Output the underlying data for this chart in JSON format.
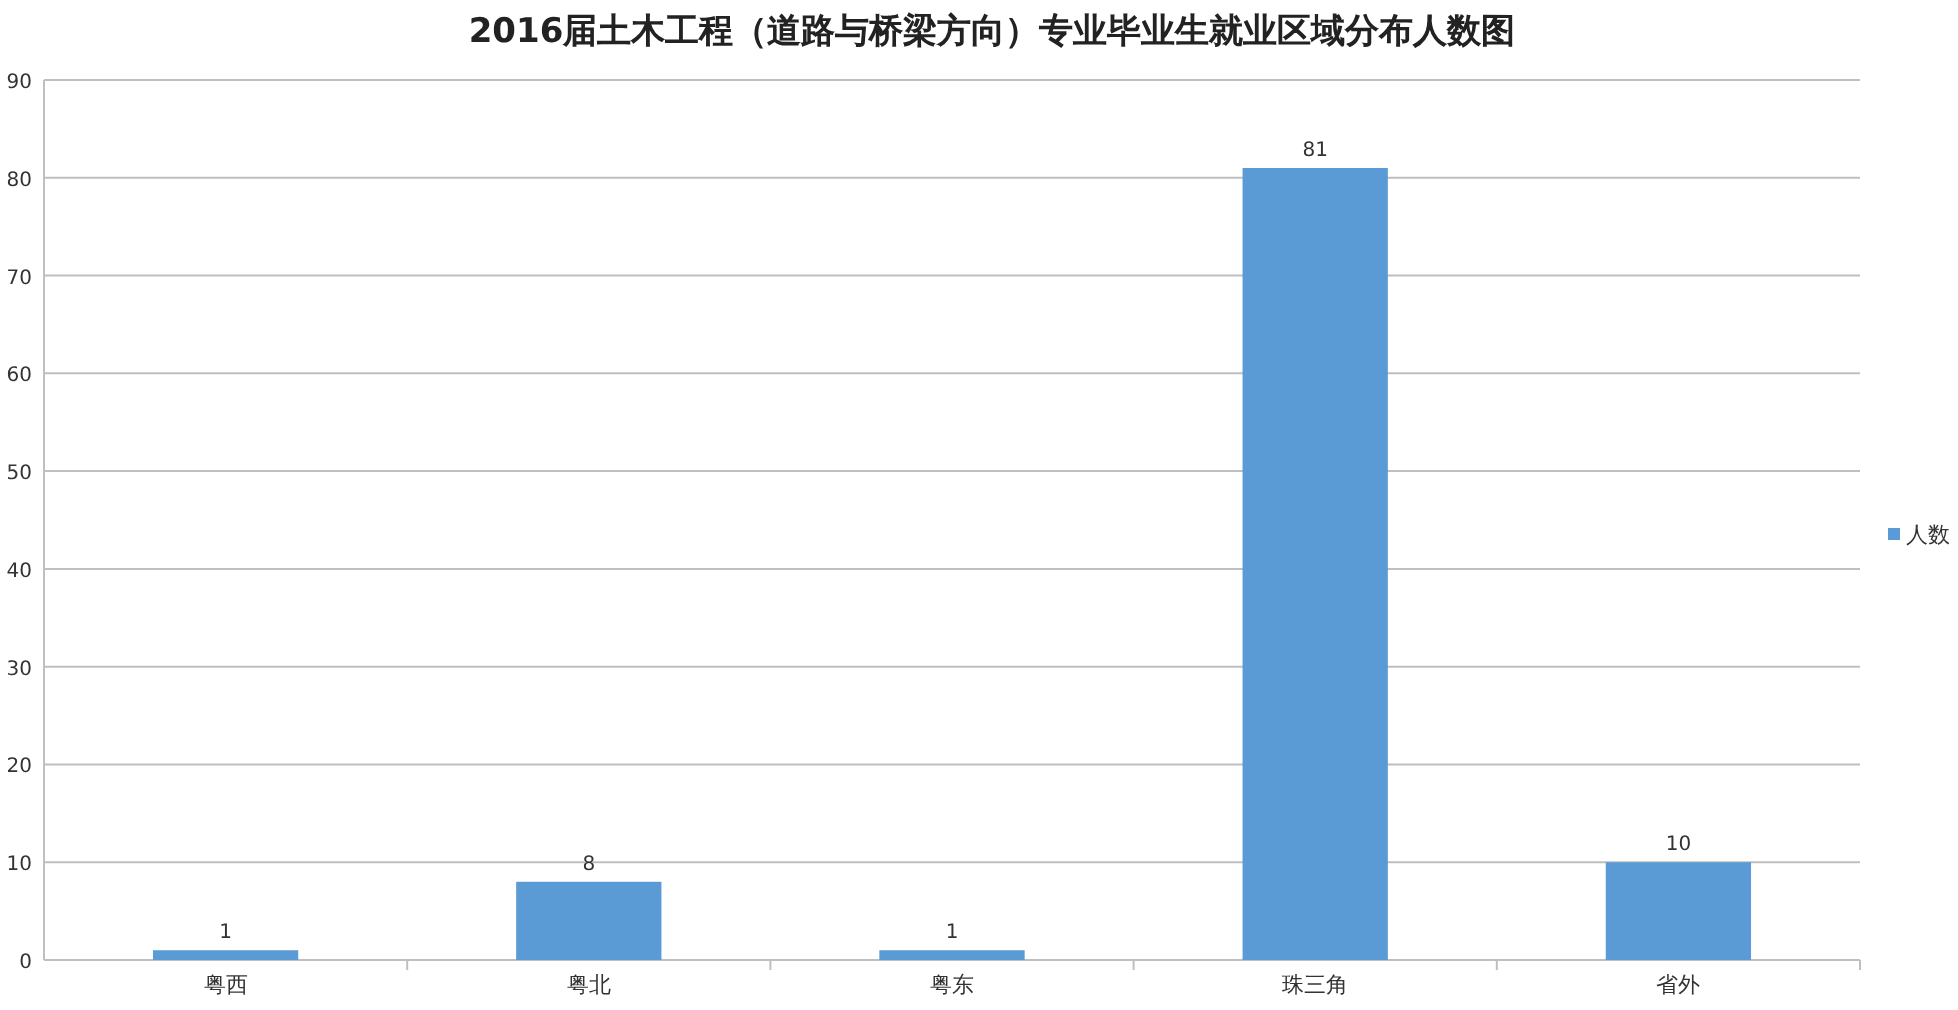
{
  "chart_data": {
    "type": "bar",
    "title": "2016届土木工程（道路与桥梁方向）专业毕业生就业区域分布人数图",
    "categories": [
      "粤西",
      "粤北",
      "粤东",
      "珠三角",
      "省外"
    ],
    "series": [
      {
        "name": "人数",
        "color": "#5b9bd5",
        "values": [
          1,
          8,
          1,
          81,
          10
        ]
      }
    ],
    "ylim": [
      0,
      90
    ],
    "yticks": [
      0,
      10,
      20,
      30,
      40,
      50,
      60,
      70,
      80,
      90
    ],
    "grid": "y",
    "legend": "right",
    "data_labels": true
  }
}
